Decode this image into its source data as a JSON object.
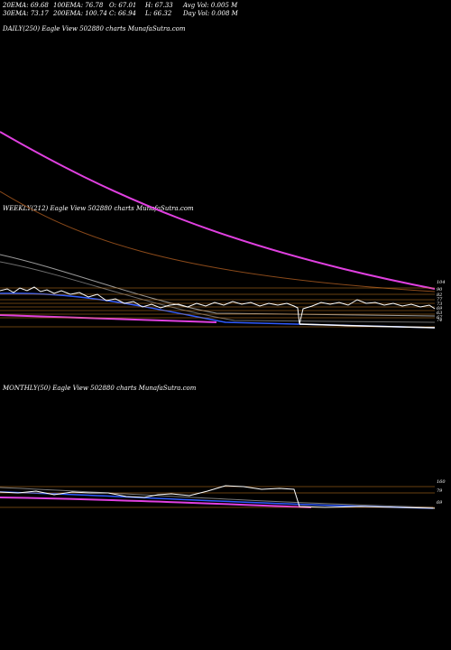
{
  "header": {
    "ema20": "20EMA: 69.68",
    "ema100": "100EMA: 76.78",
    "open": "O: 67.01",
    "high": "H: 67.33",
    "avg_vol": "Avg Vol: 0.005 M",
    "ema30": "30EMA: 73.17",
    "ema200": "200EMA: 100.74",
    "close": "C: 66.94",
    "low": "L: 66.32",
    "day_vol": "Day Vol: 0.008 M"
  },
  "panels": {
    "daily": {
      "label": "DAILY(250) Eagle  View  502880  charts MunafaSutra.com"
    },
    "weekly": {
      "label": "WEEKLY(212) Eagle  View  502880  charts MunafaSutra.com",
      "levels": [
        "104",
        "90",
        "82",
        "77",
        "73",
        "69",
        "63",
        "67",
        "74"
      ]
    },
    "monthly": {
      "label": "MONTHLY(50) Eagle  View  502880  charts MunafaSutra.com",
      "levels": [
        "160",
        "79",
        "69"
      ]
    }
  },
  "colors": {
    "background": "#000000",
    "price_line": "#ffffff",
    "ema_magenta": "#e040e0",
    "ema_brown": "#8b4a1a",
    "ema_blue": "#2f5bff",
    "level_orange": "#d2801e"
  }
}
